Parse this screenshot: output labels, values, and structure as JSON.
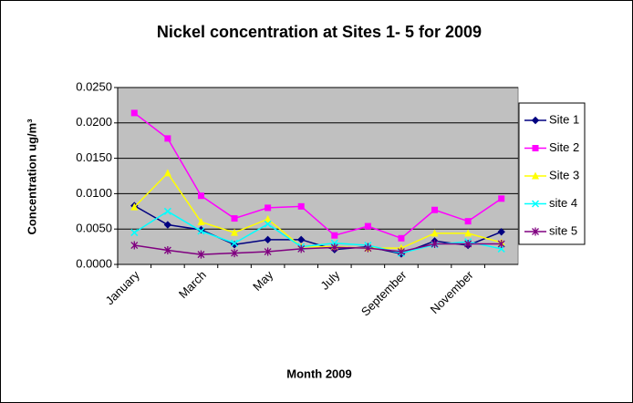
{
  "chart_data": {
    "type": "line",
    "title": "Nickel concentration at Sites 1- 5 for 2009",
    "x_label": "Month 2009",
    "y_label": "Concentration ug/m³",
    "categories": [
      "January",
      null,
      "March",
      null,
      "May",
      null,
      "July",
      null,
      "September",
      null,
      "November",
      null
    ],
    "ylim": [
      0,
      0.025
    ],
    "yticks": [
      {
        "value": 0,
        "label": "0.0000"
      },
      {
        "value": 0.005,
        "label": "0.0050"
      },
      {
        "value": 0.01,
        "label": "0.0100"
      },
      {
        "value": 0.015,
        "label": "0.0150"
      },
      {
        "value": 0.02,
        "label": "0.0200"
      },
      {
        "value": 0.025,
        "label": "0.0250"
      }
    ],
    "grid": true,
    "legend": "right",
    "series": [
      {
        "name": "Site 1",
        "color": "#000080",
        "marker": "diamond",
        "values": [
          0.0083,
          0.0056,
          0.0049,
          0.0028,
          0.0035,
          0.0035,
          0.0021,
          0.0025,
          0.0015,
          0.0033,
          0.0027,
          0.0046
        ]
      },
      {
        "name": "Site 2",
        "color": "#ff00ff",
        "marker": "square",
        "values": [
          0.0214,
          0.0178,
          0.0097,
          0.0065,
          0.008,
          0.0082,
          0.0041,
          0.0054,
          0.0037,
          0.0077,
          0.0061,
          0.0093
        ]
      },
      {
        "name": "Site 3",
        "color": "#ffff00",
        "marker": "triangle",
        "values": [
          0.0081,
          0.0129,
          0.006,
          0.0045,
          0.0064,
          0.0025,
          0.0025,
          0.0023,
          0.0023,
          0.0044,
          0.0044,
          0.0031
        ]
      },
      {
        "name": "site 4",
        "color": "#00ffff",
        "marker": "x",
        "values": [
          0.0045,
          0.0075,
          0.0047,
          0.003,
          0.0057,
          0.0025,
          0.003,
          0.0027,
          0.0016,
          0.0028,
          0.0032,
          0.0022
        ]
      },
      {
        "name": "site 5",
        "color": "#800080",
        "marker": "star",
        "values": [
          0.0027,
          0.002,
          0.0014,
          0.0016,
          0.0018,
          0.0022,
          0.0024,
          0.0023,
          0.0018,
          0.0029,
          0.0029,
          0.0029
        ]
      }
    ]
  }
}
